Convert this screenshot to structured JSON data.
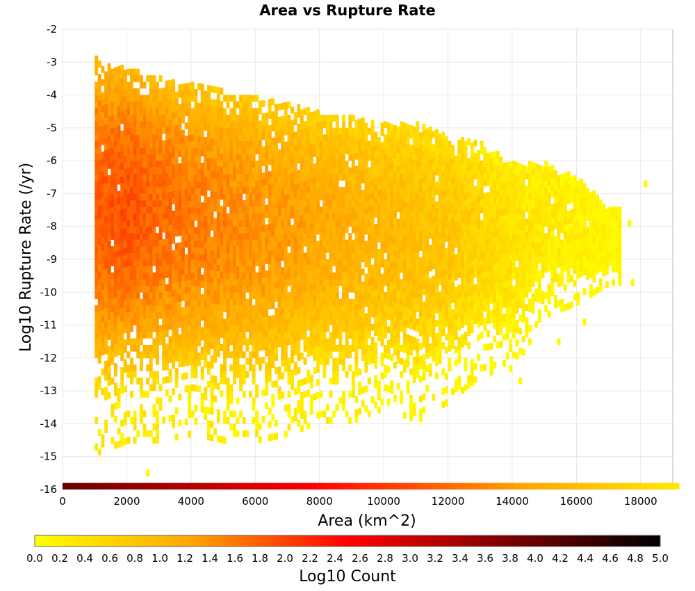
{
  "chart_data": {
    "type": "heatmap",
    "title": "Area vs Rupture Rate",
    "xlabel": "Area (km^2)",
    "ylabel": "Log10 Rupture Rate (/yr)",
    "xlim": [
      0,
      19000
    ],
    "ylim": [
      -16,
      -2
    ],
    "x_ticks": [
      0,
      2000,
      4000,
      6000,
      8000,
      10000,
      12000,
      14000,
      16000,
      18000
    ],
    "y_ticks": [
      -2,
      -3,
      -4,
      -5,
      -6,
      -7,
      -8,
      -9,
      -10,
      -11,
      -12,
      -13,
      -14,
      -15,
      -16
    ],
    "grid": true,
    "colorbar": {
      "label": "Log10 Count",
      "range": [
        0.0,
        5.0
      ],
      "ticks": [
        "0.0",
        "0.2",
        "0.4",
        "0.6",
        "0.8",
        "1.0",
        "1.2",
        "1.4",
        "1.6",
        "1.8",
        "2.0",
        "2.2",
        "2.4",
        "2.6",
        "2.8",
        "3.0",
        "3.2",
        "3.4",
        "3.6",
        "3.8",
        "4.0",
        "4.2",
        "4.4",
        "4.6",
        "4.8",
        "5.0"
      ],
      "colors": [
        "#ffff00",
        "#ffa500",
        "#ff0000",
        "#800000",
        "#000000"
      ]
    },
    "bin_size": {
      "x": 100,
      "y": 0.2
    },
    "bottom_row": {
      "y": -16,
      "x_range": [
        0,
        19200
      ],
      "log10_count_start": 4.0,
      "log10_count_end": 0.3
    },
    "density_envelope": [
      {
        "x": 1000,
        "y_min": -15.0,
        "y_max": -3.0,
        "peak_log10_count": 1.8
      },
      {
        "x": 2000,
        "y_min": -14.6,
        "y_max": -3.3,
        "peak_log10_count": 1.9
      },
      {
        "x": 3000,
        "y_min": -14.6,
        "y_max": -3.6,
        "peak_log10_count": 1.7
      },
      {
        "x": 4000,
        "y_min": -14.4,
        "y_max": -3.8,
        "peak_log10_count": 1.6
      },
      {
        "x": 5000,
        "y_min": -14.6,
        "y_max": -4.0,
        "peak_log10_count": 1.5
      },
      {
        "x": 6000,
        "y_min": -14.6,
        "y_max": -4.2,
        "peak_log10_count": 1.4
      },
      {
        "x": 7000,
        "y_min": -14.4,
        "y_max": -4.4,
        "peak_log10_count": 1.3
      },
      {
        "x": 8000,
        "y_min": -14.0,
        "y_max": -4.6,
        "peak_log10_count": 1.2
      },
      {
        "x": 9000,
        "y_min": -14.0,
        "y_max": -4.8,
        "peak_log10_count": 1.1
      },
      {
        "x": 10000,
        "y_min": -13.6,
        "y_max": -5.0,
        "peak_log10_count": 1.0
      },
      {
        "x": 11000,
        "y_min": -14.0,
        "y_max": -5.0,
        "peak_log10_count": 0.9
      },
      {
        "x": 12000,
        "y_min": -13.4,
        "y_max": -5.3,
        "peak_log10_count": 0.8
      },
      {
        "x": 13000,
        "y_min": -12.6,
        "y_max": -5.6,
        "peak_log10_count": 0.6
      },
      {
        "x": 14000,
        "y_min": -12.4,
        "y_max": -6.2,
        "peak_log10_count": 0.4
      },
      {
        "x": 15000,
        "y_min": -10.8,
        "y_max": -6.2,
        "peak_log10_count": 0.3
      },
      {
        "x": 16000,
        "y_min": -10.4,
        "y_max": -6.6,
        "peak_log10_count": 0.2
      },
      {
        "x": 17000,
        "y_min": -9.8,
        "y_max": -7.6,
        "peak_log10_count": 0.1
      }
    ],
    "outlier_points": [
      {
        "x": 2600,
        "y": -15.6
      },
      {
        "x": 14200,
        "y": -12.8
      },
      {
        "x": 15400,
        "y": -11.6
      },
      {
        "x": 16200,
        "y": -11.0
      },
      {
        "x": 17200,
        "y": -9.0
      },
      {
        "x": 17700,
        "y": -9.8
      },
      {
        "x": 18100,
        "y": -6.8
      },
      {
        "x": 17600,
        "y": -8.0
      }
    ]
  }
}
